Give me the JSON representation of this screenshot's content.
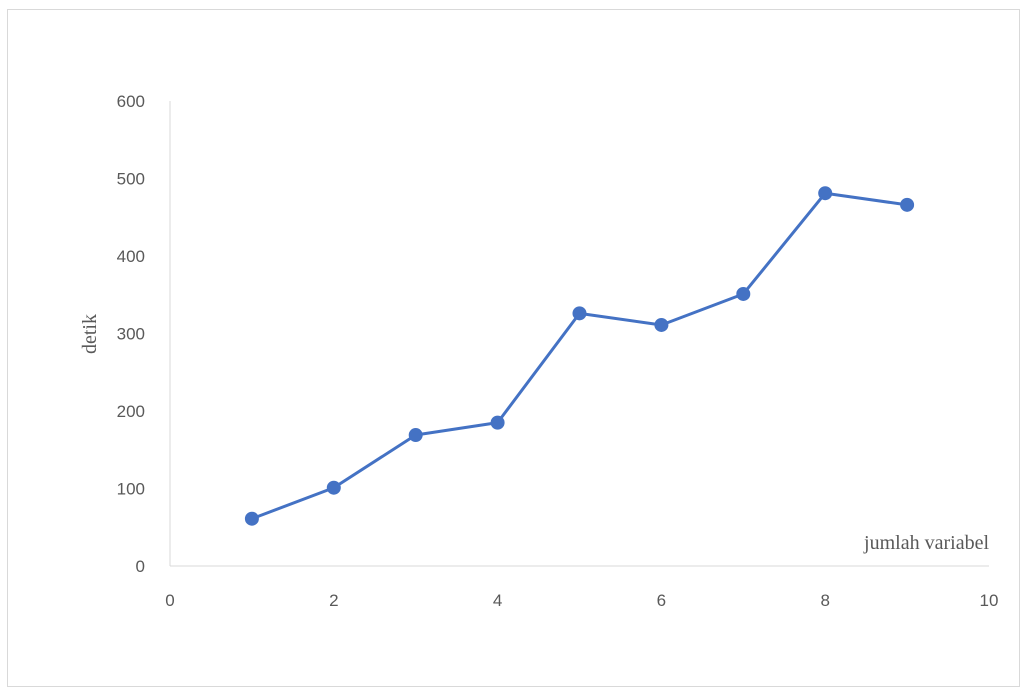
{
  "chart_data": {
    "type": "scatter",
    "title": "",
    "xlabel": "jumlah variabel",
    "ylabel": "detik",
    "xlim": [
      0,
      10
    ],
    "ylim": [
      0,
      600
    ],
    "x_ticks": [
      0,
      2,
      4,
      6,
      8,
      10
    ],
    "y_ticks": [
      0,
      100,
      200,
      300,
      400,
      500,
      600
    ],
    "grid": false,
    "legend": "none",
    "series": [
      {
        "color": "#4472c4",
        "marker": "circle",
        "line": true,
        "points": [
          {
            "x": 1,
            "y": 61
          },
          {
            "x": 2,
            "y": 101
          },
          {
            "x": 3,
            "y": 169
          },
          {
            "x": 4,
            "y": 185
          },
          {
            "x": 5,
            "y": 326
          },
          {
            "x": 6,
            "y": 311
          },
          {
            "x": 7,
            "y": 351
          },
          {
            "x": 8,
            "y": 481
          },
          {
            "x": 9,
            "y": 466
          }
        ]
      }
    ]
  }
}
